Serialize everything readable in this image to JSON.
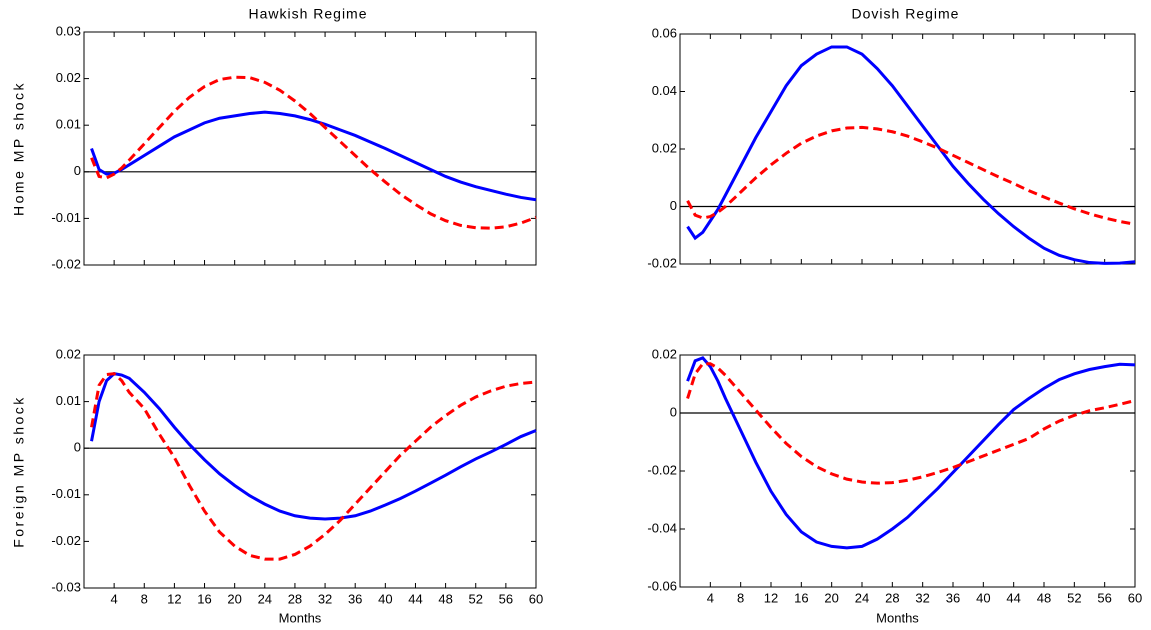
{
  "chart_data": [
    {
      "type": "line",
      "title": "Hawkish Regime",
      "ylabel": "Home MP shock",
      "x": [
        1,
        2,
        3,
        4,
        5,
        6,
        8,
        10,
        12,
        14,
        16,
        18,
        20,
        22,
        24,
        26,
        28,
        30,
        32,
        34,
        36,
        38,
        40,
        42,
        44,
        46,
        48,
        50,
        52,
        54,
        56,
        58,
        60
      ],
      "xlim": [
        0,
        60
      ],
      "xticks": [
        4,
        8,
        12,
        16,
        20,
        24,
        28,
        32,
        36,
        40,
        44,
        48,
        52,
        56,
        60
      ],
      "ylim": [
        -0.02,
        0.03
      ],
      "yticks": [
        -0.02,
        -0.01,
        0,
        0.01,
        0.02,
        0.03
      ],
      "hline": 0,
      "series": [
        {
          "color": "#0000ff",
          "style": "solid",
          "values": [
            0.005,
            0.0005,
            -0.0005,
            -0.0003,
            0.0005,
            0.0015,
            0.0035,
            0.0055,
            0.0075,
            0.009,
            0.0105,
            0.0115,
            0.012,
            0.0125,
            0.0128,
            0.0125,
            0.012,
            0.0112,
            0.0102,
            0.009,
            0.0078,
            0.0064,
            0.005,
            0.0035,
            0.002,
            0.0005,
            -0.001,
            -0.0022,
            -0.0032,
            -0.004,
            -0.0048,
            -0.0055,
            -0.006
          ]
        },
        {
          "color": "#ff0000",
          "style": "dashed",
          "values": [
            0.003,
            -0.001,
            -0.0013,
            -0.0005,
            0.0008,
            0.0025,
            0.006,
            0.0095,
            0.013,
            0.016,
            0.0183,
            0.0198,
            0.0203,
            0.0202,
            0.0192,
            0.0175,
            0.0152,
            0.0125,
            0.0095,
            0.0065,
            0.0035,
            0.0005,
            -0.0022,
            -0.0048,
            -0.007,
            -0.009,
            -0.0105,
            -0.0115,
            -0.012,
            -0.0121,
            -0.0118,
            -0.011,
            -0.0098
          ]
        }
      ]
    },
    {
      "type": "line",
      "title": "Dovish Regime",
      "x": [
        1,
        2,
        3,
        4,
        5,
        6,
        8,
        10,
        12,
        14,
        16,
        18,
        20,
        22,
        24,
        26,
        28,
        30,
        32,
        34,
        36,
        38,
        40,
        42,
        44,
        46,
        48,
        50,
        52,
        54,
        56,
        58,
        60
      ],
      "xlim": [
        0,
        60
      ],
      "xticks": [
        4,
        8,
        12,
        16,
        20,
        24,
        28,
        32,
        36,
        40,
        44,
        48,
        52,
        56,
        60
      ],
      "ylim": [
        -0.02,
        0.06
      ],
      "yticks": [
        -0.02,
        0,
        0.02,
        0.04,
        0.06
      ],
      "hline": 0,
      "series": [
        {
          "color": "#0000ff",
          "style": "solid",
          "values": [
            -0.007,
            -0.011,
            -0.009,
            -0.005,
            -0.001,
            0.004,
            0.014,
            0.024,
            0.033,
            0.042,
            0.049,
            0.053,
            0.0555,
            0.0555,
            0.053,
            0.048,
            0.042,
            0.035,
            0.028,
            0.021,
            0.014,
            0.008,
            0.0025,
            -0.0025,
            -0.007,
            -0.011,
            -0.0145,
            -0.017,
            -0.0185,
            -0.0195,
            -0.0198,
            -0.0197,
            -0.0192
          ]
        },
        {
          "color": "#ff0000",
          "style": "dashed",
          "values": [
            0.002,
            -0.003,
            -0.004,
            -0.0035,
            -0.002,
            0,
            0.005,
            0.01,
            0.0145,
            0.0185,
            0.022,
            0.0245,
            0.0263,
            0.0273,
            0.0275,
            0.027,
            0.026,
            0.0245,
            0.0225,
            0.0203,
            0.0178,
            0.0153,
            0.0128,
            0.0103,
            0.008,
            0.0055,
            0.0033,
            0.0012,
            -0.0008,
            -0.0025,
            -0.004,
            -0.0052,
            -0.0062
          ]
        }
      ]
    },
    {
      "type": "line",
      "ylabel": "Foreign MP shock",
      "xlabel": "Months",
      "x": [
        1,
        2,
        3,
        4,
        5,
        6,
        8,
        10,
        12,
        14,
        16,
        18,
        20,
        22,
        24,
        26,
        28,
        30,
        32,
        34,
        36,
        38,
        40,
        42,
        44,
        46,
        48,
        50,
        52,
        54,
        56,
        58,
        60
      ],
      "xlim": [
        0,
        60
      ],
      "xticks": [
        4,
        8,
        12,
        16,
        20,
        24,
        28,
        32,
        36,
        40,
        44,
        48,
        52,
        56,
        60
      ],
      "ylim": [
        -0.03,
        0.02
      ],
      "yticks": [
        -0.03,
        -0.02,
        -0.01,
        0,
        0.01,
        0.02
      ],
      "hline": 0,
      "series": [
        {
          "color": "#0000ff",
          "style": "solid",
          "values": [
            0.0015,
            0.01,
            0.0145,
            0.016,
            0.0157,
            0.015,
            0.012,
            0.0085,
            0.0045,
            0.0008,
            -0.0025,
            -0.0055,
            -0.008,
            -0.0102,
            -0.012,
            -0.0135,
            -0.0145,
            -0.015,
            -0.0152,
            -0.015,
            -0.0145,
            -0.0135,
            -0.0122,
            -0.0108,
            -0.0092,
            -0.0075,
            -0.0058,
            -0.004,
            -0.0023,
            -0.0008,
            0.0008,
            0.0025,
            0.0038
          ]
        },
        {
          "color": "#ff0000",
          "style": "dashed",
          "values": [
            0.0045,
            0.0135,
            0.0158,
            0.016,
            0.0145,
            0.012,
            0.0085,
            0.003,
            -0.002,
            -0.008,
            -0.0135,
            -0.018,
            -0.021,
            -0.023,
            -0.0238,
            -0.0238,
            -0.0228,
            -0.021,
            -0.0185,
            -0.0155,
            -0.012,
            -0.0085,
            -0.005,
            -0.0015,
            0.0015,
            0.0045,
            0.007,
            0.0092,
            0.011,
            0.0123,
            0.0133,
            0.0139,
            0.0142
          ]
        }
      ]
    },
    {
      "type": "line",
      "xlabel": "Months",
      "x": [
        1,
        2,
        3,
        4,
        5,
        6,
        8,
        10,
        12,
        14,
        16,
        18,
        20,
        22,
        24,
        26,
        28,
        30,
        32,
        34,
        36,
        38,
        40,
        42,
        44,
        46,
        48,
        50,
        52,
        54,
        56,
        58,
        60
      ],
      "xlim": [
        0,
        60
      ],
      "xticks": [
        4,
        8,
        12,
        16,
        20,
        24,
        28,
        32,
        36,
        40,
        44,
        48,
        52,
        56,
        60
      ],
      "ylim": [
        -0.06,
        0.02
      ],
      "yticks": [
        -0.06,
        -0.04,
        -0.02,
        0,
        0.02
      ],
      "hline": 0,
      "series": [
        {
          "color": "#0000ff",
          "style": "solid",
          "values": [
            0.011,
            0.018,
            0.019,
            0.016,
            0.011,
            0.005,
            -0.006,
            -0.017,
            -0.027,
            -0.035,
            -0.041,
            -0.0445,
            -0.046,
            -0.0465,
            -0.046,
            -0.0435,
            -0.04,
            -0.036,
            -0.031,
            -0.026,
            -0.0205,
            -0.015,
            -0.0095,
            -0.004,
            0.0012,
            0.005,
            0.0085,
            0.0115,
            0.0135,
            0.015,
            0.016,
            0.0168,
            0.0166
          ]
        },
        {
          "color": "#ff0000",
          "style": "dashed",
          "values": [
            0.005,
            0.0135,
            0.017,
            0.017,
            0.0155,
            0.013,
            0.007,
            0.001,
            -0.005,
            -0.0105,
            -0.015,
            -0.0185,
            -0.021,
            -0.0228,
            -0.0238,
            -0.0242,
            -0.024,
            -0.0232,
            -0.022,
            -0.0205,
            -0.0188,
            -0.0168,
            -0.0148,
            -0.0128,
            -0.0108,
            -0.0088,
            -0.0055,
            -0.0028,
            -0.0008,
            0.0008,
            0.0018,
            0.003,
            0.0043
          ]
        }
      ]
    }
  ]
}
